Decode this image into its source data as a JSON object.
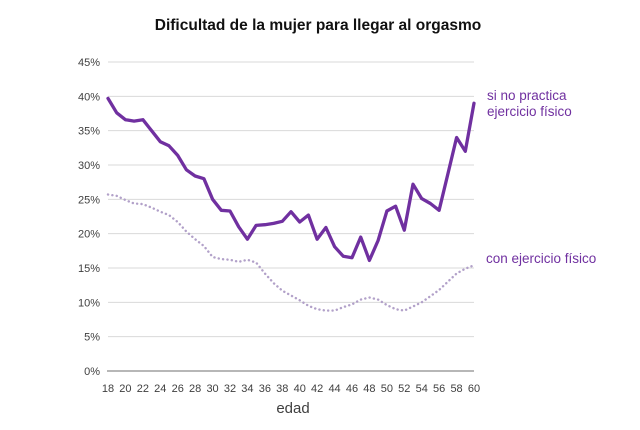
{
  "chart_data": {
    "type": "line",
    "title": "Dificultad de la mujer para llegar al orgasmo",
    "xlabel": "edad",
    "ylabel": "",
    "x_range": [
      18,
      60
    ],
    "ylim": [
      0,
      45
    ],
    "grid": true,
    "legend_position": "right-annotations",
    "y_tick_labels": [
      "0%",
      "5%",
      "10%",
      "15%",
      "20%",
      "25%",
      "30%",
      "35%",
      "40%",
      "45%"
    ],
    "y_tick_values": [
      0,
      5,
      10,
      15,
      20,
      25,
      30,
      35,
      40,
      45
    ],
    "x_tick_labels": [
      "18",
      "20",
      "22",
      "24",
      "26",
      "28",
      "30",
      "32",
      "34",
      "36",
      "38",
      "40",
      "42",
      "44",
      "46",
      "48",
      "50",
      "52",
      "54",
      "56",
      "58",
      "60"
    ],
    "x": [
      18,
      19,
      20,
      21,
      22,
      23,
      24,
      25,
      26,
      27,
      28,
      29,
      30,
      31,
      32,
      33,
      34,
      35,
      36,
      37,
      38,
      39,
      40,
      41,
      42,
      43,
      44,
      45,
      46,
      47,
      48,
      49,
      50,
      51,
      52,
      53,
      54,
      55,
      56,
      57,
      58,
      59,
      60
    ],
    "series": [
      {
        "name": "si no practica ejercicio físico",
        "label_lines": [
          "si no practica",
          "ejercicio físico"
        ],
        "style": "solid",
        "color": "#7030A0",
        "label_color": "#7030A0",
        "values": [
          39.7,
          37.6,
          36.6,
          36.4,
          36.6,
          35.0,
          33.4,
          32.8,
          31.4,
          29.3,
          28.4,
          28.0,
          25.0,
          23.4,
          23.3,
          21.0,
          19.2,
          21.2,
          21.3,
          21.5,
          21.8,
          23.2,
          21.7,
          22.7,
          19.2,
          20.9,
          18.1,
          16.7,
          16.5,
          19.5,
          16.1,
          19.0,
          23.3,
          24.0,
          20.5,
          27.2,
          25.1,
          24.4,
          23.4,
          28.7,
          34.0,
          32.0,
          39.0
        ]
      },
      {
        "name": "con ejercicio físico",
        "label_lines": [
          "con ejercicio físico"
        ],
        "style": "dotted",
        "color": "#B2A1C9",
        "label_color": "#7030A0",
        "values": [
          25.7,
          25.5,
          24.9,
          24.4,
          24.3,
          23.8,
          23.2,
          22.7,
          21.7,
          20.3,
          19.2,
          18.2,
          16.6,
          16.3,
          16.2,
          15.9,
          16.2,
          15.8,
          14.2,
          12.8,
          11.7,
          11.0,
          10.3,
          9.5,
          9.0,
          8.8,
          8.8,
          9.3,
          9.7,
          10.4,
          10.7,
          10.4,
          9.6,
          9.0,
          8.8,
          9.4,
          10.0,
          10.9,
          11.8,
          13.0,
          14.2,
          14.9,
          15.4
        ]
      }
    ]
  },
  "colors": {
    "grid": "#D9D9D9",
    "axis": "#8C8C8C",
    "tick_text": "#3F3F3F",
    "title_text": "#111111"
  }
}
